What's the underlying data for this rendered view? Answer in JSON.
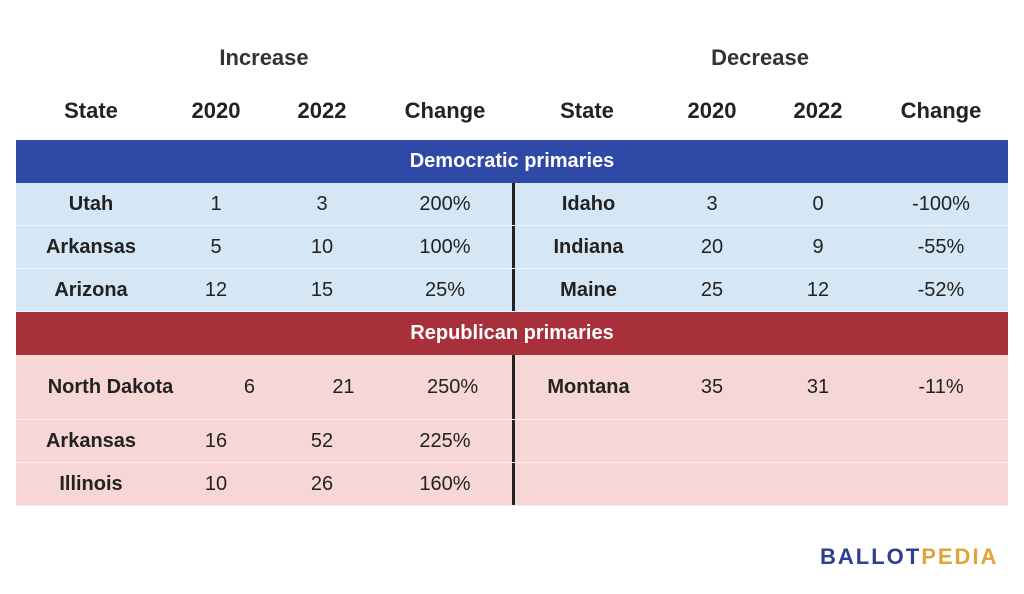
{
  "chart_data": {
    "type": "table",
    "groups": [
      "Increase",
      "Decrease"
    ],
    "columns": [
      "State",
      "2020",
      "2022",
      "Change"
    ],
    "sections": [
      {
        "title": "Democratic primaries",
        "color": "#2f49a6",
        "row_bg": "#d5e7f4",
        "rows": [
          {
            "inc": [
              "Utah",
              "1",
              "3",
              "200%"
            ],
            "dec": [
              "Idaho",
              "3",
              "0",
              "-100%"
            ]
          },
          {
            "inc": [
              "Arkansas",
              "5",
              "10",
              "100%"
            ],
            "dec": [
              "Indiana",
              "20",
              "9",
              "-55%"
            ]
          },
          {
            "inc": [
              "Arizona",
              "12",
              "15",
              "25%"
            ],
            "dec": [
              "Maine",
              "25",
              "12",
              "-52%"
            ]
          }
        ]
      },
      {
        "title": "Republican primaries",
        "color": "#a8303a",
        "row_bg": "#f7d7d6",
        "rows": [
          {
            "inc": [
              "North Dakota",
              "6",
              "21",
              "250%"
            ],
            "dec": [
              "Montana",
              "35",
              "31",
              "-11%"
            ]
          },
          {
            "inc": [
              "Arkansas",
              "16",
              "52",
              "225%"
            ],
            "dec": [
              "",
              "",
              "",
              ""
            ]
          },
          {
            "inc": [
              "Illinois",
              "10",
              "26",
              "160%"
            ],
            "dec": [
              "",
              "",
              "",
              ""
            ]
          }
        ]
      }
    ]
  },
  "logo": {
    "part1": "BALLOT",
    "part2": "PEDIA",
    "color1": "#2e3f8f",
    "color2": "#e2a33b"
  }
}
